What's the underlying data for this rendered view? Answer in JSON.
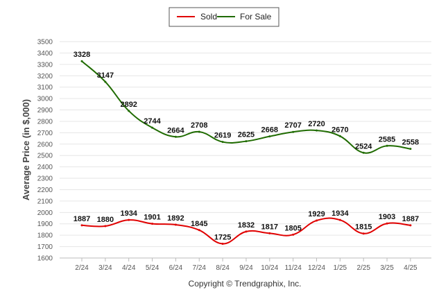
{
  "chart_data": {
    "type": "line",
    "title": "",
    "xlabel": "",
    "ylabel": "Average Price (in $,000)",
    "credit": "Copyright © Trendgraphix, Inc.",
    "categories": [
      "2/24",
      "3/24",
      "4/24",
      "5/24",
      "6/24",
      "7/24",
      "8/24",
      "9/24",
      "10/24",
      "11/24",
      "12/24",
      "1/25",
      "2/25",
      "3/25",
      "4/25"
    ],
    "ylim": [
      1600,
      3500
    ],
    "yticks": [
      1600,
      1700,
      1800,
      1900,
      2000,
      2100,
      2200,
      2300,
      2400,
      2500,
      2600,
      2700,
      2800,
      2900,
      3000,
      3100,
      3200,
      3300,
      3400,
      3500
    ],
    "grid": true,
    "legend_position": "top-center",
    "series": [
      {
        "name": "Sold",
        "color": "#e00000",
        "values": [
          1887,
          1880,
          1934,
          1901,
          1892,
          1845,
          1725,
          1832,
          1817,
          1805,
          1929,
          1934,
          1815,
          1903,
          1887
        ]
      },
      {
        "name": "For Sale",
        "color": "#1f6b00",
        "values": [
          3328,
          3147,
          2892,
          2744,
          2664,
          2708,
          2619,
          2625,
          2668,
          2707,
          2720,
          2670,
          2524,
          2585,
          2558
        ]
      }
    ]
  }
}
